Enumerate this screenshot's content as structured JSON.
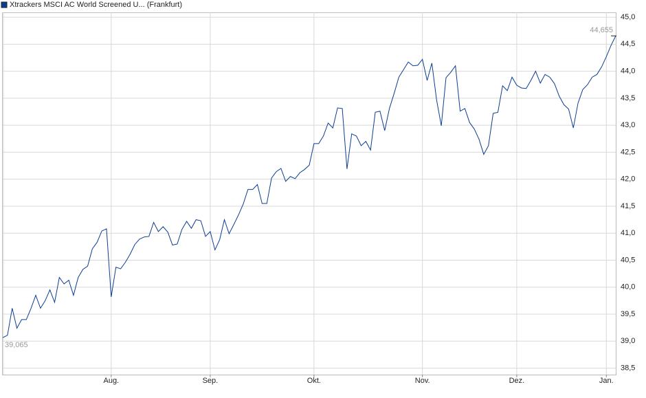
{
  "chart_data": {
    "type": "line",
    "categories": [
      null,
      null,
      null,
      null,
      null,
      null,
      null,
      null,
      null,
      null,
      null,
      null,
      null,
      null,
      null,
      null,
      null,
      null,
      null,
      null,
      null,
      null,
      null,
      "Aug.",
      null,
      null,
      null,
      null,
      null,
      null,
      null,
      null,
      null,
      null,
      null,
      null,
      null,
      null,
      null,
      null,
      null,
      null,
      null,
      null,
      "Sep.",
      null,
      null,
      null,
      null,
      null,
      null,
      null,
      null,
      null,
      null,
      null,
      null,
      null,
      null,
      null,
      null,
      null,
      null,
      null,
      null,
      null,
      "Okt.",
      null,
      null,
      null,
      null,
      null,
      null,
      null,
      null,
      null,
      null,
      null,
      null,
      null,
      null,
      null,
      null,
      null,
      null,
      null,
      null,
      null,
      null,
      "Nov.",
      null,
      null,
      null,
      null,
      null,
      null,
      null,
      null,
      null,
      null,
      null,
      null,
      null,
      null,
      null,
      null,
      null,
      null,
      null,
      "Dez.",
      null,
      null,
      null,
      null,
      null,
      null,
      null,
      null,
      null,
      null,
      null,
      null,
      null,
      null,
      null,
      null,
      null,
      null,
      "Jan.",
      null,
      null
    ],
    "series": [
      {
        "name": "Xtrackers MSCI AC World Screened U... (Frankfurt)",
        "color": "#0b3d91",
        "values": [
          39.065,
          39.11,
          39.61,
          39.24,
          39.4,
          39.4,
          39.61,
          39.85,
          39.61,
          39.75,
          39.95,
          39.72,
          40.18,
          40.06,
          40.13,
          39.85,
          40.18,
          40.33,
          40.39,
          40.71,
          40.83,
          41.04,
          41.08,
          39.82,
          40.37,
          40.34,
          40.46,
          40.61,
          40.79,
          40.89,
          40.93,
          40.94,
          41.2,
          41.03,
          41.12,
          41.02,
          40.78,
          40.8,
          41.07,
          41.22,
          41.09,
          41.25,
          41.23,
          40.94,
          41.03,
          40.69,
          40.88,
          41.25,
          40.99,
          41.16,
          41.34,
          41.54,
          41.81,
          41.81,
          41.9,
          41.55,
          41.55,
          42.02,
          42.14,
          42.2,
          41.96,
          42.05,
          42.01,
          42.12,
          42.18,
          42.26,
          42.66,
          42.66,
          42.8,
          43.04,
          42.95,
          43.32,
          43.31,
          42.19,
          42.84,
          42.8,
          42.62,
          42.7,
          42.54,
          43.24,
          43.26,
          42.9,
          43.31,
          43.59,
          43.89,
          44.03,
          44.17,
          44.1,
          44.11,
          44.22,
          43.83,
          44.15,
          43.47,
          42.99,
          43.88,
          43.98,
          44.1,
          43.26,
          43.31,
          43.05,
          42.93,
          42.74,
          42.46,
          42.62,
          43.22,
          43.24,
          43.73,
          43.64,
          43.89,
          43.74,
          43.69,
          43.68,
          43.83,
          44.0,
          43.78,
          43.94,
          43.89,
          43.77,
          43.54,
          43.38,
          43.3,
          42.95,
          43.41,
          43.66,
          43.75,
          43.89,
          43.94,
          44.08,
          44.27,
          44.48,
          44.655
        ]
      }
    ],
    "start_label": "39,065",
    "end_label": "44,655",
    "ylim": [
      38.38,
      45.09
    ],
    "yticks": [
      {
        "value": 38.5,
        "label": "38,5"
      },
      {
        "value": 39.0,
        "label": "39,0"
      },
      {
        "value": 39.5,
        "label": "39,5"
      },
      {
        "value": 40.0,
        "label": "40,0"
      },
      {
        "value": 40.5,
        "label": "40,5"
      },
      {
        "value": 41.0,
        "label": "41,0"
      },
      {
        "value": 41.5,
        "label": "41,5"
      },
      {
        "value": 42.0,
        "label": "42,0"
      },
      {
        "value": 42.5,
        "label": "42,5"
      },
      {
        "value": 43.0,
        "label": "43,0"
      },
      {
        "value": 43.5,
        "label": "43,5"
      },
      {
        "value": 44.0,
        "label": "44,0"
      },
      {
        "value": 44.5,
        "label": "44,5"
      },
      {
        "value": 45.0,
        "label": "45,0"
      }
    ],
    "grid": true
  }
}
